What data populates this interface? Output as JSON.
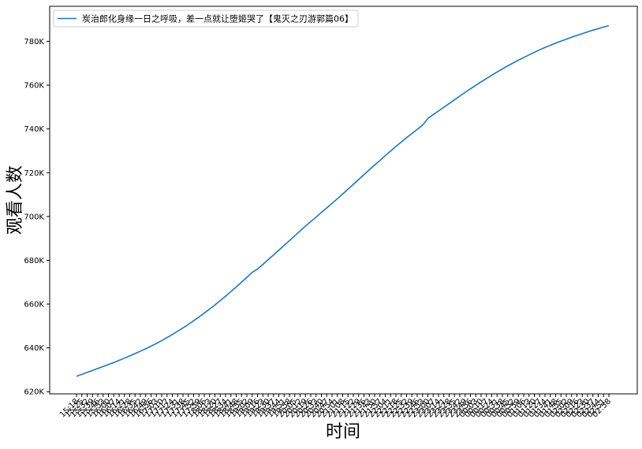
{
  "chart_data": {
    "type": "line",
    "xlabel": "时间",
    "ylabel": "观看人数",
    "ylim": [
      619000,
      796000
    ],
    "yticks": [
      620000,
      640000,
      660000,
      680000,
      700000,
      720000,
      740000,
      760000,
      780000
    ],
    "yticklabels": [
      "620K",
      "640K",
      "660K",
      "680K",
      "700K",
      "720K",
      "740K",
      "760K",
      "780K"
    ],
    "x": [
      "15:18",
      "15:25",
      "15:32",
      "15:39",
      "15:46",
      "15:53",
      "16:00",
      "16:07",
      "16:14",
      "16:21",
      "16:28",
      "16:35",
      "16:42",
      "16:49",
      "16:56",
      "17:03",
      "17:10",
      "17:17",
      "17:24",
      "17:31",
      "17:38",
      "17:45",
      "17:52",
      "17:59",
      "18:06",
      "18:13",
      "18:20",
      "18:27",
      "18:34",
      "18:41",
      "18:48",
      "18:55",
      "19:02",
      "19:09",
      "19:16",
      "19:23",
      "19:30",
      "19:37",
      "19:44",
      "19:51",
      "19:58",
      "20:05",
      "20:12",
      "20:19",
      "20:26",
      "20:33",
      "20:40",
      "20:47",
      "20:54",
      "21:01",
      "21:08",
      "21:15",
      "21:22",
      "21:29",
      "21:36",
      "21:43",
      "21:50",
      "21:57",
      "22:04",
      "22:11",
      "22:18",
      "22:25",
      "22:32",
      "22:39",
      "22:46",
      "22:53",
      "23:00",
      "23:07",
      "23:14",
      "23:21",
      "23:28",
      "23:35",
      "23:42",
      "23:49",
      "23:56",
      "00:03",
      "00:10",
      "00:17",
      "00:24",
      "00:31",
      "00:38",
      "00:45",
      "00:52",
      "00:59",
      "01:06",
      "01:13",
      "01:20",
      "01:27",
      "01:34",
      "01:41",
      "01:48",
      "01:55",
      "02:02",
      "02:09",
      "02:16",
      "02:23",
      "02:30",
      "02:37",
      "02:44",
      "02:51",
      "02:58"
    ],
    "series": [
      {
        "name": "炭治郎化身缘一日之呼吸，差一点就让堕姬哭了【鬼灭之刃游郭篇06】",
        "color": "#1f77b4",
        "values": [
          627000,
          627900,
          628800,
          629700,
          630600,
          631500,
          632400,
          633300,
          634300,
          635300,
          636300,
          637400,
          638500,
          639600,
          640800,
          642000,
          643300,
          644700,
          646100,
          647600,
          649100,
          650700,
          652400,
          654100,
          655900,
          657700,
          659600,
          661600,
          663600,
          665700,
          667800,
          670000,
          672200,
          674500,
          676000,
          678100,
          680300,
          682400,
          684600,
          686800,
          689000,
          691200,
          693400,
          695600,
          697700,
          699700,
          701900,
          703900,
          706000,
          708100,
          710300,
          712500,
          714700,
          716900,
          719100,
          721300,
          723500,
          725600,
          727800,
          729900,
          732000,
          734000,
          736000,
          737900,
          739800,
          741700,
          744800,
          746500,
          748200,
          749900,
          751600,
          753300,
          755000,
          756700,
          758300,
          759900,
          761500,
          763000,
          764500,
          766000,
          767400,
          768800,
          770100,
          771400,
          772600,
          773800,
          775000,
          776100,
          777200,
          778200,
          779200,
          780100,
          781000,
          781900,
          782700,
          783500,
          784300,
          785100,
          785800,
          786500,
          787200
        ]
      }
    ],
    "legend": "top-left",
    "grid": false
  }
}
